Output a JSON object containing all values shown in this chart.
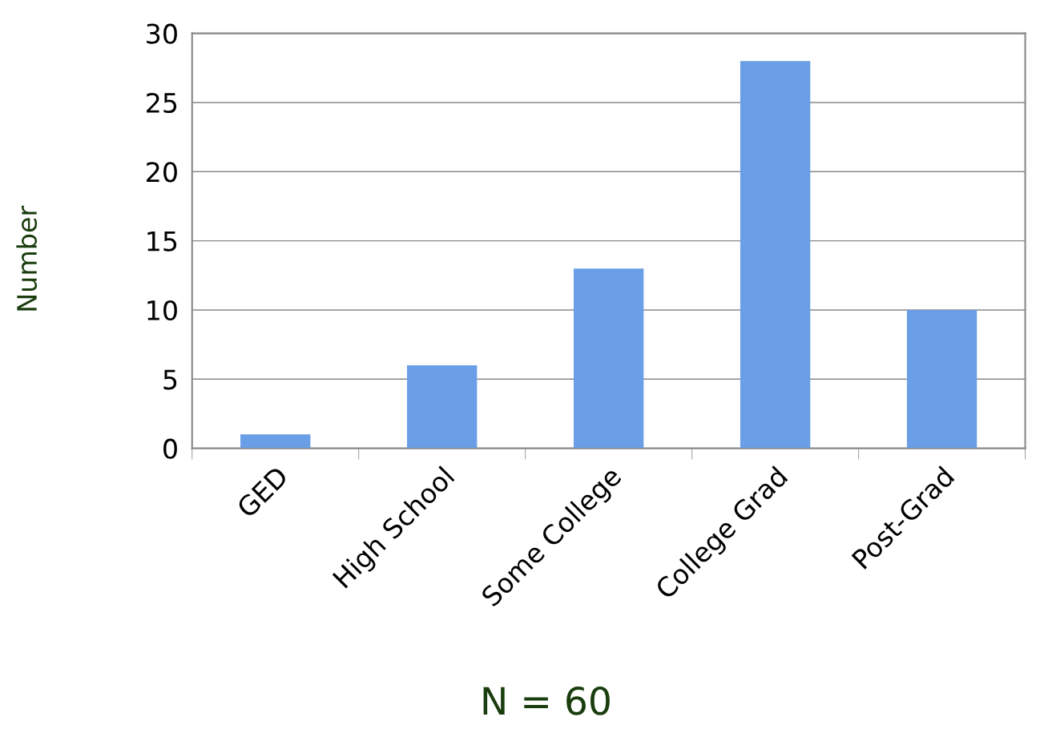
{
  "chart_data": {
    "type": "bar",
    "xlabel": "N = 60",
    "ylabel": "Number",
    "categories": [
      "GED",
      "High School",
      "Some College",
      "College Grad",
      "Post-Grad"
    ],
    "values": [
      1,
      6,
      13,
      28,
      10
    ],
    "color": "#6a9ee6",
    "ylim": [
      0,
      30
    ],
    "yticks": [
      0,
      5,
      10,
      15,
      20,
      25,
      30
    ],
    "grid": "y"
  }
}
